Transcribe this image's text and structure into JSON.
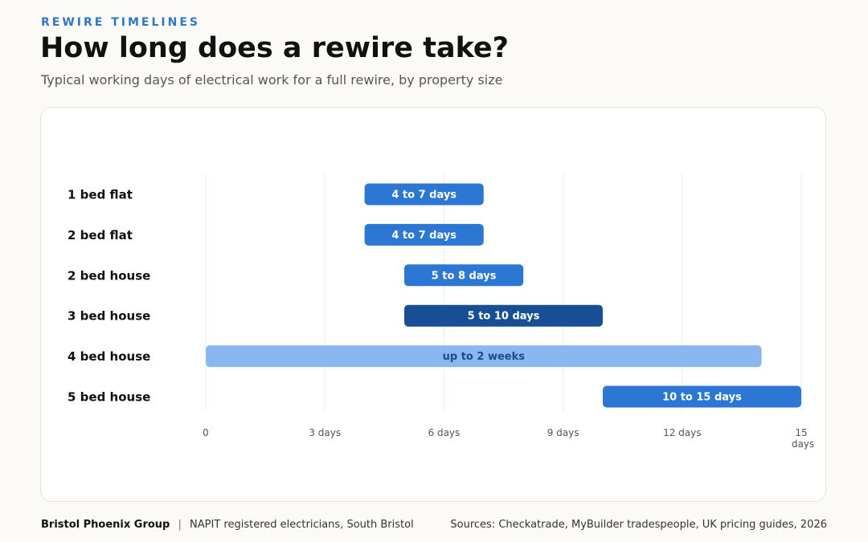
{
  "header": {
    "eyebrow": "REWIRE TIMELINES",
    "title": "How long does a rewire take?",
    "subtitle": "Typical working days of electrical work for a full rewire, by property size"
  },
  "footer": {
    "brand": "Bristol Phoenix Group",
    "separator": "|",
    "tagline": "NAPIT registered electricians, South Bristol",
    "sources": "Sources: Checkatrade, MyBuilder tradespeople, UK pricing guides, 2026"
  },
  "colors": {
    "standard": "#2c77d4",
    "highlight": "#174f94",
    "light": "#8ab7ee",
    "light_text": "#1a4d8f",
    "eyebrow": "#2f78c4"
  },
  "chart_data": {
    "type": "bar",
    "orientation": "horizontal-range",
    "categories": [
      "1 bed flat",
      "2 bed flat",
      "2 bed house",
      "3 bed house",
      "4 bed house",
      "5 bed house"
    ],
    "series": [
      {
        "ranges": [
          [
            4,
            7
          ],
          [
            4,
            7
          ],
          [
            5,
            8
          ],
          [
            5,
            10
          ],
          [
            0,
            14
          ],
          [
            10,
            15
          ]
        ],
        "labels": [
          "4 to 7 days",
          "4 to 7 days",
          "5 to 8 days",
          "5 to 10 days",
          "up to 2 weeks",
          "10 to 15 days"
        ],
        "styles": [
          "standard",
          "standard",
          "standard",
          "highlight",
          "light",
          "standard"
        ]
      }
    ],
    "xticks": [
      0,
      3,
      6,
      9,
      12,
      15
    ],
    "xtick_labels": [
      "0",
      "3 days",
      "6 days",
      "9 days",
      "12 days",
      "15 days"
    ],
    "xlim": [
      0,
      15
    ],
    "grid": "vertical",
    "xlabel": "",
    "ylabel": ""
  }
}
